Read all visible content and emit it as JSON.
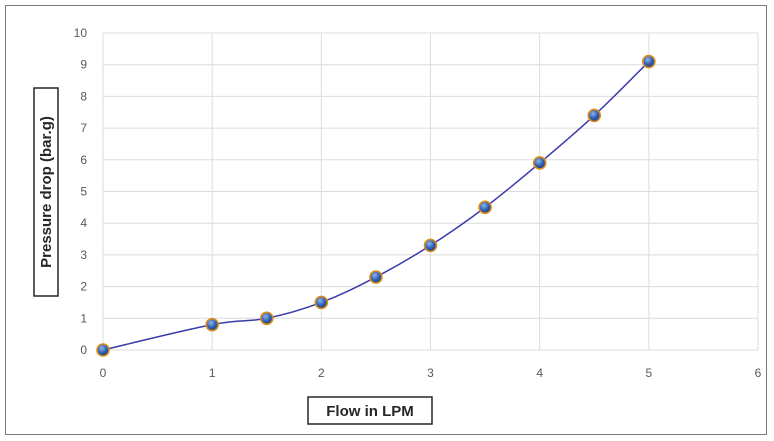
{
  "chart_data": {
    "type": "scatter",
    "title": "",
    "xlabel": "Flow in LPM",
    "ylabel": "Pressure drop (bar.g)",
    "xlim": [
      0,
      6
    ],
    "ylim": [
      0,
      10
    ],
    "x_ticks": [
      0,
      1,
      2,
      3,
      4,
      5,
      6
    ],
    "y_ticks": [
      0,
      1,
      2,
      3,
      4,
      5,
      6,
      7,
      8,
      9,
      10
    ],
    "grid": true,
    "legend": "none",
    "series": [
      {
        "x": [
          0,
          1,
          1.5,
          2,
          2.5,
          3,
          3.5,
          4,
          4.5,
          5
        ],
        "y": [
          0,
          0.8,
          1.0,
          1.5,
          2.3,
          3.3,
          4.5,
          5.9,
          7.4,
          9.1
        ],
        "line": "smooth",
        "line_color": "#3a3aa8",
        "marker_color": "#2f5fb3",
        "marker_edge_color": "#d98c1c"
      }
    ]
  }
}
